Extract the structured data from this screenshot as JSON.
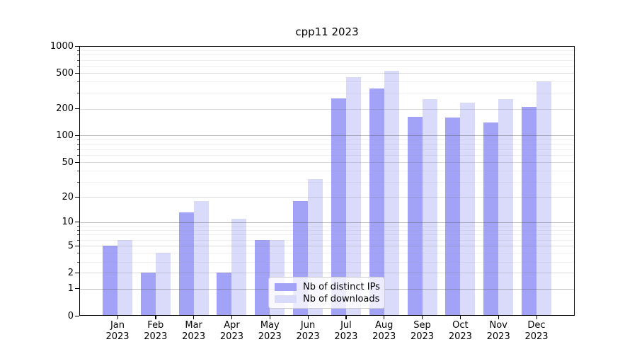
{
  "chart_data": {
    "type": "bar",
    "title": "cpp11 2023",
    "categories": [
      "Jan",
      "Feb",
      "Mar",
      "Apr",
      "May",
      "Jun",
      "Jul",
      "Aug",
      "Sep",
      "Oct",
      "Nov",
      "Dec"
    ],
    "x_year": "2023",
    "series": [
      {
        "name": "Nb of distinct IPs",
        "color": "#a2a2f7",
        "values": [
          5,
          2,
          13,
          2,
          6,
          18,
          260,
          335,
          162,
          159,
          139,
          208
        ]
      },
      {
        "name": "Nb of downloads",
        "color": "#dadafb",
        "values": [
          6,
          4,
          18,
          11,
          6,
          32,
          450,
          530,
          254,
          232,
          258,
          400
        ]
      }
    ],
    "xlabel": "",
    "ylabel": "",
    "scale": "log1p",
    "ylim": [
      0,
      1000
    ],
    "y_ticks": [
      0,
      1,
      2,
      5,
      10,
      20,
      50,
      100,
      200,
      500,
      1000
    ],
    "y_minor_ticks": [
      3,
      4,
      6,
      7,
      8,
      9,
      30,
      40,
      60,
      70,
      80,
      90,
      300,
      400,
      600,
      700,
      800,
      900
    ],
    "grid": true,
    "legend_position": "lower center",
    "colors": {
      "axis": "#000000",
      "grid_major": "#c8c8c8",
      "grid_minor": "#ebebeb",
      "legend_border": "#cccccc",
      "background": "#ffffff"
    }
  }
}
